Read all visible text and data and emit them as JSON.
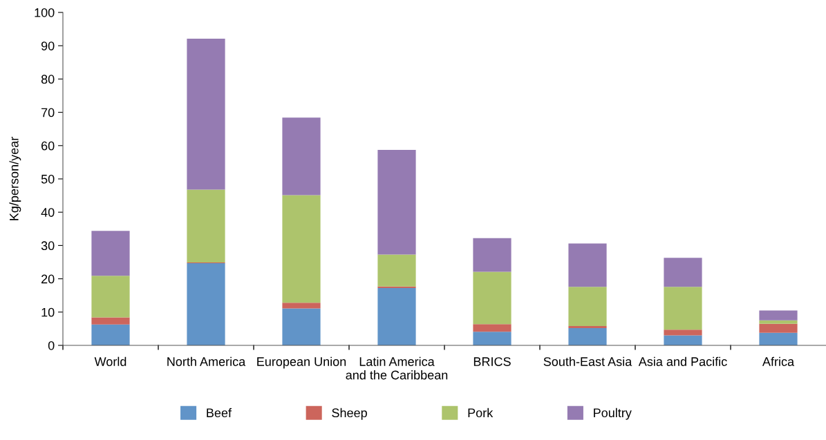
{
  "chart_data": {
    "type": "bar",
    "stacked": true,
    "ylabel": "Kg/person/year",
    "categories": [
      "World",
      "North America",
      "European Union",
      "Latin America\nand the Caribbean",
      "BRICS",
      "South-East Asia",
      "Asia and Pacific",
      "Africa"
    ],
    "series": [
      {
        "name": "Beef",
        "color": "#6194c8",
        "values": [
          6.3,
          24.7,
          11.1,
          17.2,
          4.1,
          5.2,
          3.0,
          3.8
        ]
      },
      {
        "name": "Sheep",
        "color": "#cc655c",
        "values": [
          2.1,
          0.2,
          1.7,
          0.5,
          2.3,
          0.6,
          1.7,
          2.7
        ]
      },
      {
        "name": "Pork",
        "color": "#adc46c",
        "values": [
          12.5,
          21.9,
          32.3,
          9.6,
          15.7,
          11.8,
          12.9,
          1.0
        ]
      },
      {
        "name": "Poultry",
        "color": "#957bb2",
        "values": [
          13.5,
          45.3,
          23.3,
          31.4,
          10.1,
          13.0,
          8.7,
          3.0
        ]
      }
    ],
    "ylim": [
      0,
      100
    ],
    "yticks": [
      0,
      10,
      20,
      30,
      40,
      50,
      60,
      70,
      80,
      90,
      100
    ],
    "grid": false,
    "legend": "bottom"
  }
}
